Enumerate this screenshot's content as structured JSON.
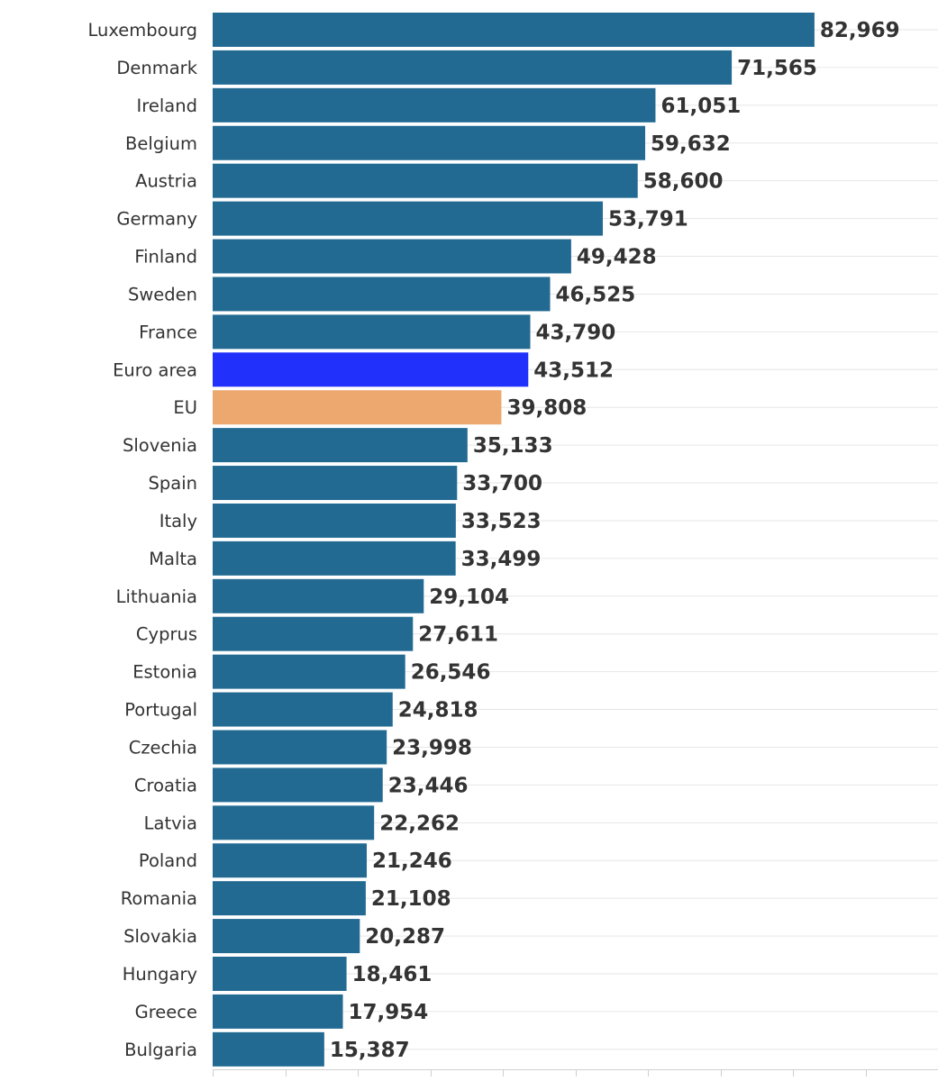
{
  "chart_data": {
    "type": "bar",
    "orientation": "horizontal",
    "categories": [
      "Luxembourg",
      "Denmark",
      "Ireland",
      "Belgium",
      "Austria",
      "Germany",
      "Finland",
      "Sweden",
      "France",
      "Euro area",
      "EU",
      "Slovenia",
      "Spain",
      "Italy",
      "Malta",
      "Lithuania",
      "Cyprus",
      "Estonia",
      "Portugal",
      "Czechia",
      "Croatia",
      "Latvia",
      "Poland",
      "Romania",
      "Slovakia",
      "Hungary",
      "Greece",
      "Bulgaria"
    ],
    "values": [
      82969,
      71565,
      61051,
      59632,
      58600,
      53791,
      49428,
      46525,
      43790,
      43512,
      39808,
      35133,
      33700,
      33523,
      33499,
      29104,
      27611,
      26546,
      24818,
      23998,
      23446,
      22262,
      21246,
      21108,
      20287,
      18461,
      17954,
      15387
    ],
    "value_labels": [
      "82,969",
      "71,565",
      "61,051",
      "59,632",
      "58,600",
      "53,791",
      "49,428",
      "46,525",
      "43,790",
      "43,512",
      "39,808",
      "35,133",
      "33,700",
      "33,523",
      "33,499",
      "29,104",
      "27,611",
      "26,546",
      "24,818",
      "23,998",
      "23,446",
      "22,262",
      "21,246",
      "21,108",
      "20,287",
      "18,461",
      "17,954",
      "15,387"
    ],
    "xlim": [
      0,
      100000
    ],
    "x_tick_count": 10,
    "grid": true,
    "colors": {
      "default": "#236a93",
      "Euro area": "#2130fa",
      "EU": "#eca86f"
    }
  }
}
